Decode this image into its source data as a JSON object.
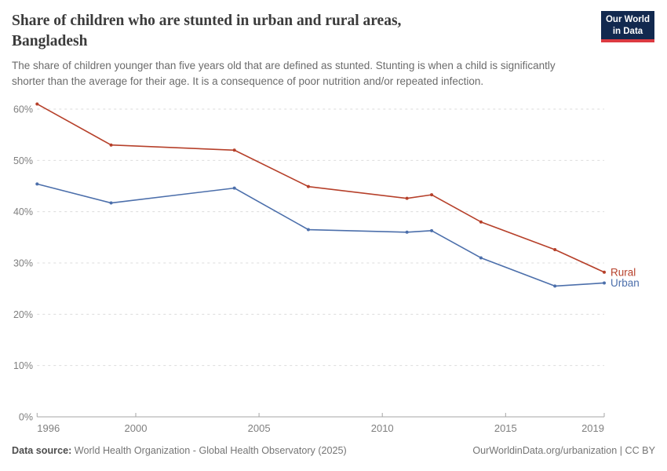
{
  "header": {
    "title": "Share of children who are stunted in urban and rural areas, Bangladesh",
    "title_lines": [
      "Share of children who are stunted in urban and rural areas,",
      "Bangladesh"
    ],
    "subtitle_lines": [
      "The share of children younger than five years old that are defined as stunted. Stunting is when a child is significantly",
      "shorter than the average for their age. It is a consequence of poor nutrition and/or repeated infection."
    ]
  },
  "logo": {
    "line1": "Our World",
    "line2": "in Data",
    "bg_color": "#12294f",
    "accent_color": "#dc3a41"
  },
  "chart_data": {
    "type": "line",
    "title": "Share of children who are stunted in urban and rural areas, Bangladesh",
    "subtitle": "The share of children younger than five years old that are defined as stunted. Stunting is when a child is significantly shorter than the average for their age. It is a consequence of poor nutrition and/or repeated infection.",
    "xlabel": "",
    "ylabel": "",
    "x": [
      1996,
      1999,
      2004,
      2007,
      2011,
      2012,
      2014,
      2017,
      2019
    ],
    "series": [
      {
        "name": "Rural",
        "color": "#b6402a",
        "values": [
          61.0,
          53.0,
          52.0,
          44.9,
          42.6,
          43.3,
          38.0,
          32.6,
          28.2
        ]
      },
      {
        "name": "Urban",
        "color": "#4c6fab",
        "values": [
          45.4,
          41.7,
          44.6,
          36.5,
          36.0,
          36.3,
          31.0,
          25.5,
          26.1
        ]
      }
    ],
    "xlim": [
      1996,
      2019
    ],
    "ylim": [
      0,
      62
    ],
    "x_ticks": [
      1996,
      2000,
      2005,
      2010,
      2015,
      2019
    ],
    "y_ticks": [
      0,
      10,
      20,
      30,
      40,
      50,
      60
    ],
    "y_tick_suffix": "%",
    "grid": "horizontal-dashed",
    "legend_position": "right-end-of-line",
    "grid_color": "#dbdbdb",
    "axis_color": "#a6a6a6",
    "tick_label_color": "#7f7f7f"
  },
  "footer": {
    "source_label": "Data source:",
    "source_text": " World Health Organization - Global Health Observatory (2025)",
    "attribution": "OurWorldinData.org/urbanization | CC BY"
  }
}
